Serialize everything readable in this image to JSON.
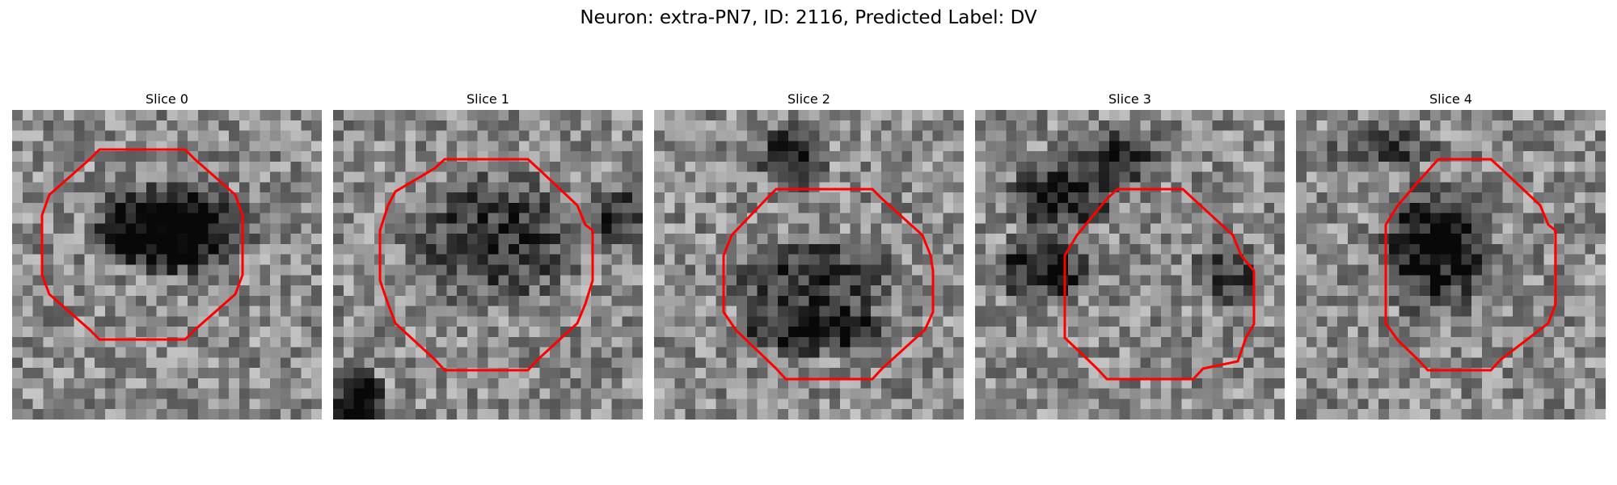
{
  "title": "Neuron: extra-PN7, ID: 2116, Predicted Label: DV",
  "contour_color": "#ff0000",
  "slices": [
    {
      "label": "Slice 0"
    },
    {
      "label": "Slice 1"
    },
    {
      "label": "Slice 2"
    },
    {
      "label": "Slice 3"
    },
    {
      "label": "Slice 4"
    }
  ]
}
